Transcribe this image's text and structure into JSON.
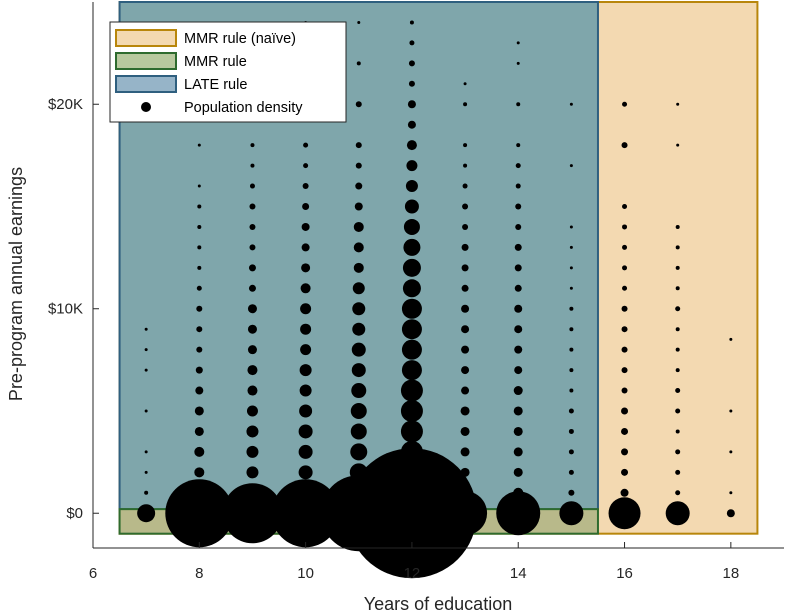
{
  "chart_data": {
    "type": "scatter",
    "title": "",
    "xlabel": "Years of education",
    "ylabel": "Pre-program annual earnings",
    "xlim": [
      6,
      19
    ],
    "ylim": [
      -1700,
      25000
    ],
    "x_ticks": [
      6,
      8,
      10,
      12,
      14,
      16,
      18
    ],
    "x_tick_labels": [
      "6",
      "8",
      "10",
      "12",
      "14",
      "16",
      "18"
    ],
    "y_ticks": [
      0,
      10000,
      20000
    ],
    "y_tick_labels": [
      "$0",
      "$10K",
      "$20K"
    ],
    "grid": false,
    "legend_position": "top-left",
    "regions": [
      {
        "name": "MMR rule (naïve)",
        "x_range": [
          6.5,
          18.5
        ],
        "y_range": [
          -1000,
          25000
        ],
        "fill": "#f3d9b1",
        "edge": "#b8860b"
      },
      {
        "name": "LATE rule",
        "x_range": [
          6.5,
          15.5
        ],
        "y_range": [
          200,
          25000
        ],
        "fill": "#7fa6ab",
        "edge": "#2f5f7f"
      },
      {
        "name": "MMR rule",
        "x_range": [
          6.5,
          15.5
        ],
        "y_range": [
          -1000,
          200
        ],
        "fill": "#b8b98a",
        "edge": "#2e6b2e"
      }
    ],
    "legend": [
      {
        "label": "MMR rule (naïve)",
        "fill": "#f3d9b1",
        "edge": "#b8860b",
        "kind": "patch"
      },
      {
        "label": "MMR rule",
        "fill": "#b8c99e",
        "edge": "#2e6b2e",
        "kind": "patch"
      },
      {
        "label": "LATE rule",
        "fill": "#96b4c8",
        "edge": "#2f5f7f",
        "kind": "patch"
      },
      {
        "label": "Population density",
        "kind": "marker"
      }
    ],
    "density_points": [
      {
        "x": 7,
        "points": [
          [
            0,
            9
          ],
          [
            1000,
            2
          ],
          [
            2000,
            1.5
          ],
          [
            3000,
            1.5
          ],
          [
            5000,
            1.5
          ],
          [
            7000,
            1.5
          ],
          [
            8000,
            1.5
          ],
          [
            9000,
            1.5
          ]
        ]
      },
      {
        "x": 8,
        "points": [
          [
            0,
            34
          ],
          [
            1000,
            6
          ],
          [
            2000,
            5
          ],
          [
            3000,
            5
          ],
          [
            4000,
            4.5
          ],
          [
            5000,
            4.5
          ],
          [
            6000,
            4
          ],
          [
            7000,
            3.5
          ],
          [
            8000,
            3
          ],
          [
            9000,
            3
          ],
          [
            10000,
            3
          ],
          [
            11000,
            2.5
          ],
          [
            12000,
            2
          ],
          [
            13000,
            2
          ],
          [
            14000,
            2
          ],
          [
            15000,
            2
          ],
          [
            16000,
            1.5
          ],
          [
            18000,
            1.5
          ],
          [
            20000,
            1.5
          ]
        ]
      },
      {
        "x": 9,
        "points": [
          [
            0,
            30
          ],
          [
            1000,
            7
          ],
          [
            2000,
            6
          ],
          [
            3000,
            6
          ],
          [
            4000,
            6
          ],
          [
            5000,
            5.5
          ],
          [
            6000,
            5
          ],
          [
            7000,
            5
          ],
          [
            8000,
            4.5
          ],
          [
            9000,
            4.5
          ],
          [
            10000,
            4.5
          ],
          [
            11000,
            3.5
          ],
          [
            12000,
            3.5
          ],
          [
            13000,
            3
          ],
          [
            14000,
            3
          ],
          [
            15000,
            3
          ],
          [
            16000,
            2.5
          ],
          [
            17000,
            2
          ],
          [
            18000,
            2
          ],
          [
            20000,
            2
          ],
          [
            22000,
            1.5
          ]
        ]
      },
      {
        "x": 10,
        "points": [
          [
            0,
            34
          ],
          [
            1000,
            8
          ],
          [
            2000,
            7
          ],
          [
            3000,
            7
          ],
          [
            4000,
            7
          ],
          [
            5000,
            6.5
          ],
          [
            6000,
            6
          ],
          [
            7000,
            6
          ],
          [
            8000,
            5.5
          ],
          [
            9000,
            5.5
          ],
          [
            10000,
            5.5
          ],
          [
            11000,
            5
          ],
          [
            12000,
            4.5
          ],
          [
            13000,
            4
          ],
          [
            14000,
            4
          ],
          [
            15000,
            3.5
          ],
          [
            16000,
            3
          ],
          [
            17000,
            2.5
          ],
          [
            18000,
            2.5
          ],
          [
            20000,
            2.5
          ],
          [
            22000,
            2
          ],
          [
            24000,
            1.5
          ]
        ]
      },
      {
        "x": 11,
        "points": [
          [
            0,
            38
          ],
          [
            1000,
            10
          ],
          [
            2000,
            9
          ],
          [
            3000,
            8.5
          ],
          [
            4000,
            8
          ],
          [
            5000,
            8
          ],
          [
            6000,
            7.5
          ],
          [
            7000,
            7
          ],
          [
            8000,
            7
          ],
          [
            9000,
            6.5
          ],
          [
            10000,
            6.5
          ],
          [
            11000,
            6
          ],
          [
            12000,
            5
          ],
          [
            13000,
            5
          ],
          [
            14000,
            5
          ],
          [
            15000,
            4
          ],
          [
            16000,
            3.5
          ],
          [
            17000,
            3
          ],
          [
            18000,
            3
          ],
          [
            20000,
            3
          ],
          [
            22000,
            2
          ],
          [
            24000,
            1.5
          ]
        ]
      },
      {
        "x": 12,
        "points": [
          [
            0,
            65
          ],
          [
            1000,
            11
          ],
          [
            2000,
            11
          ],
          [
            3000,
            11
          ],
          [
            4000,
            11
          ],
          [
            5000,
            11
          ],
          [
            6000,
            11
          ],
          [
            7000,
            10
          ],
          [
            8000,
            10
          ],
          [
            9000,
            10
          ],
          [
            10000,
            10
          ],
          [
            11000,
            9
          ],
          [
            12000,
            9
          ],
          [
            13000,
            8.5
          ],
          [
            14000,
            8
          ],
          [
            15000,
            7
          ],
          [
            16000,
            6
          ],
          [
            17000,
            5.5
          ],
          [
            18000,
            5
          ],
          [
            19000,
            4
          ],
          [
            20000,
            4
          ],
          [
            21000,
            3
          ],
          [
            22000,
            3
          ],
          [
            23000,
            2.5
          ],
          [
            24000,
            2
          ]
        ]
      },
      {
        "x": 13,
        "points": [
          [
            0,
            22
          ],
          [
            1000,
            5
          ],
          [
            2000,
            4.5
          ],
          [
            3000,
            4.5
          ],
          [
            4000,
            4.5
          ],
          [
            5000,
            4.5
          ],
          [
            6000,
            4
          ],
          [
            7000,
            4
          ],
          [
            8000,
            4
          ],
          [
            9000,
            4
          ],
          [
            10000,
            4
          ],
          [
            11000,
            3.5
          ],
          [
            12000,
            3.5
          ],
          [
            13000,
            3.5
          ],
          [
            14000,
            3
          ],
          [
            15000,
            3
          ],
          [
            16000,
            2.5
          ],
          [
            17000,
            2
          ],
          [
            18000,
            2
          ],
          [
            20000,
            2
          ],
          [
            21000,
            1.5
          ]
        ]
      },
      {
        "x": 14,
        "points": [
          [
            0,
            22
          ],
          [
            1000,
            5
          ],
          [
            2000,
            4.5
          ],
          [
            3000,
            4.5
          ],
          [
            4000,
            4.5
          ],
          [
            5000,
            4.5
          ],
          [
            6000,
            4.5
          ],
          [
            7000,
            4
          ],
          [
            8000,
            4
          ],
          [
            9000,
            4
          ],
          [
            10000,
            4
          ],
          [
            11000,
            3.5
          ],
          [
            12000,
            3.5
          ],
          [
            13000,
            3.5
          ],
          [
            14000,
            3
          ],
          [
            15000,
            3
          ],
          [
            16000,
            2.5
          ],
          [
            17000,
            2.5
          ],
          [
            18000,
            2
          ],
          [
            20000,
            2
          ],
          [
            22000,
            1.5
          ],
          [
            23000,
            1.5
          ]
        ]
      },
      {
        "x": 15,
        "points": [
          [
            0,
            12
          ],
          [
            1000,
            3
          ],
          [
            2000,
            2.5
          ],
          [
            3000,
            2.5
          ],
          [
            4000,
            2.5
          ],
          [
            5000,
            2.5
          ],
          [
            6000,
            2
          ],
          [
            7000,
            2
          ],
          [
            8000,
            2
          ],
          [
            9000,
            2
          ],
          [
            10000,
            2
          ],
          [
            11000,
            1.5
          ],
          [
            12000,
            1.5
          ],
          [
            13000,
            1.5
          ],
          [
            14000,
            1.5
          ],
          [
            17000,
            1.5
          ],
          [
            20000,
            1.5
          ]
        ]
      },
      {
        "x": 16,
        "points": [
          [
            0,
            16
          ],
          [
            1000,
            4
          ],
          [
            2000,
            3.5
          ],
          [
            3000,
            3.5
          ],
          [
            4000,
            3.5
          ],
          [
            5000,
            3.5
          ],
          [
            6000,
            3
          ],
          [
            7000,
            3
          ],
          [
            8000,
            3
          ],
          [
            9000,
            3
          ],
          [
            10000,
            3
          ],
          [
            11000,
            2.5
          ],
          [
            12000,
            2.5
          ],
          [
            13000,
            2.5
          ],
          [
            14000,
            2.5
          ],
          [
            15000,
            2.5
          ],
          [
            18000,
            3
          ],
          [
            20000,
            2.5
          ]
        ]
      },
      {
        "x": 17,
        "points": [
          [
            0,
            12
          ],
          [
            1000,
            2.5
          ],
          [
            2000,
            2.5
          ],
          [
            3000,
            2.5
          ],
          [
            4000,
            2
          ],
          [
            5000,
            2.5
          ],
          [
            6000,
            2.5
          ],
          [
            7000,
            2
          ],
          [
            8000,
            2
          ],
          [
            9000,
            2
          ],
          [
            10000,
            2.5
          ],
          [
            11000,
            2
          ],
          [
            12000,
            2
          ],
          [
            13000,
            2
          ],
          [
            14000,
            2
          ],
          [
            18000,
            1.5
          ],
          [
            20000,
            1.5
          ]
        ]
      },
      {
        "x": 18,
        "points": [
          [
            0,
            4
          ],
          [
            1000,
            1.5
          ],
          [
            3000,
            1.5
          ],
          [
            5000,
            1.5
          ],
          [
            8500,
            1.5
          ]
        ]
      }
    ]
  }
}
